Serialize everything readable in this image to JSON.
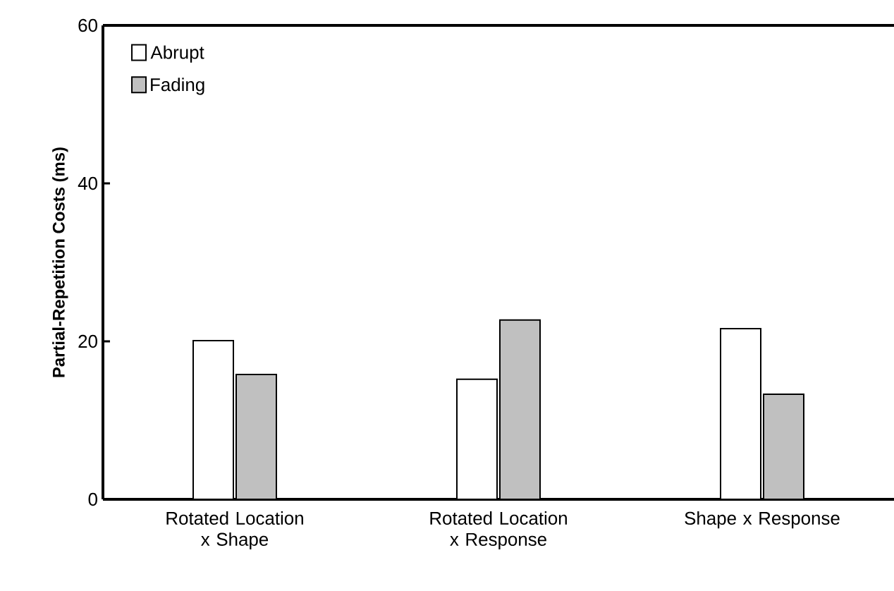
{
  "chart_data": {
    "type": "bar",
    "ylabel": "Partial-Repetition Costs (ms)",
    "categories": [
      "Rotated Location x Shape",
      "Rotated Location x Response",
      "Shape x Response"
    ],
    "series": [
      {
        "name": "Abrupt",
        "color": "#ffffff",
        "values": [
          20.1,
          15.2,
          21.6
        ]
      },
      {
        "name": "Fading",
        "color": "#c0c0c0",
        "values": [
          15.8,
          22.7,
          13.3
        ]
      }
    ],
    "ylim": [
      0,
      60
    ],
    "yticks": [
      0,
      20,
      40,
      60
    ],
    "legend": "top left"
  }
}
